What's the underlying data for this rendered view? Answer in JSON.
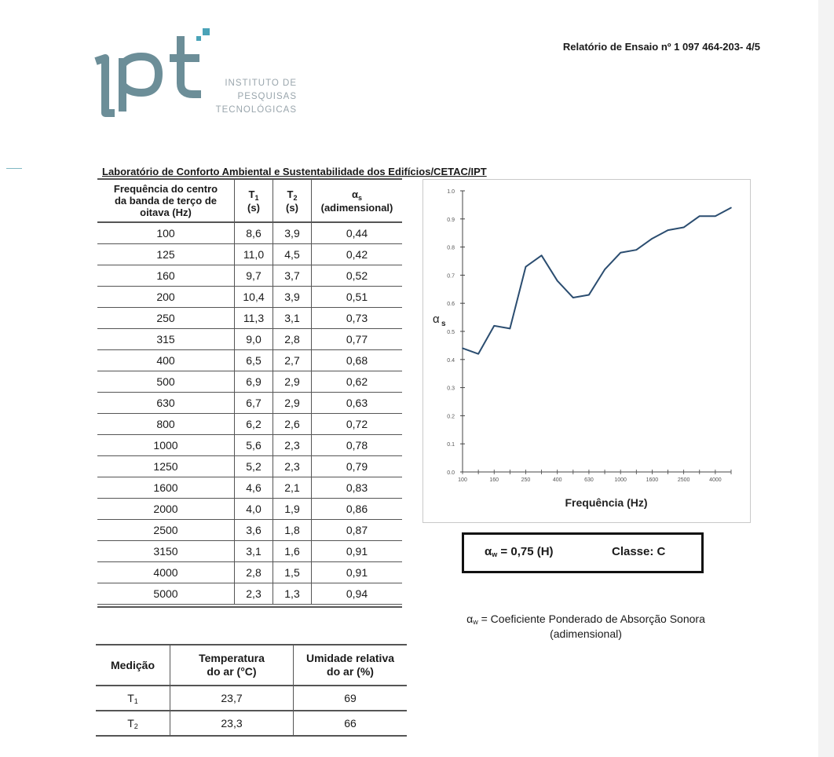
{
  "report_id": "Relatório de Ensaio nº 1 097 464-203- 4/5",
  "logo": {
    "mark_text": "ipt",
    "lines": [
      "INSTITUTO DE",
      "PESQUISAS",
      "TECNOLÓGICAS"
    ],
    "colors": {
      "mark": "#6c8e98",
      "accent": "#4aa3b8",
      "text": "#9aa6ad"
    }
  },
  "lab_title": "Laboratório de Conforto Ambiental e Sustentabilidade dos Edifícios/CETAC/IPT",
  "main_table": {
    "headers": {
      "freq": [
        "Frequência do centro",
        "da banda de terço de",
        "oitava (Hz)"
      ],
      "t1_sym": "T",
      "t1_sub": "1",
      "t1_unit": "(s)",
      "t2_sym": "T",
      "t2_sub": "2",
      "t2_unit": "(s)",
      "alpha_sym": "α",
      "alpha_sub": "s",
      "alpha_unit": "(adimensional)"
    },
    "rows": [
      {
        "freq": "100",
        "t1": "8,6",
        "t2": "3,9",
        "alpha": "0,44"
      },
      {
        "freq": "125",
        "t1": "11,0",
        "t2": "4,5",
        "alpha": "0,42"
      },
      {
        "freq": "160",
        "t1": "9,7",
        "t2": "3,7",
        "alpha": "0,52"
      },
      {
        "freq": "200",
        "t1": "10,4",
        "t2": "3,9",
        "alpha": "0,51"
      },
      {
        "freq": "250",
        "t1": "11,3",
        "t2": "3,1",
        "alpha": "0,73"
      },
      {
        "freq": "315",
        "t1": "9,0",
        "t2": "2,8",
        "alpha": "0,77"
      },
      {
        "freq": "400",
        "t1": "6,5",
        "t2": "2,7",
        "alpha": "0,68"
      },
      {
        "freq": "500",
        "t1": "6,9",
        "t2": "2,9",
        "alpha": "0,62"
      },
      {
        "freq": "630",
        "t1": "6,7",
        "t2": "2,9",
        "alpha": "0,63"
      },
      {
        "freq": "800",
        "t1": "6,2",
        "t2": "2,6",
        "alpha": "0,72"
      },
      {
        "freq": "1000",
        "t1": "5,6",
        "t2": "2,3",
        "alpha": "0,78"
      },
      {
        "freq": "1250",
        "t1": "5,2",
        "t2": "2,3",
        "alpha": "0,79"
      },
      {
        "freq": "1600",
        "t1": "4,6",
        "t2": "2,1",
        "alpha": "0,83"
      },
      {
        "freq": "2000",
        "t1": "4,0",
        "t2": "1,9",
        "alpha": "0,86"
      },
      {
        "freq": "2500",
        "t1": "3,6",
        "t2": "1,8",
        "alpha": "0,87"
      },
      {
        "freq": "3150",
        "t1": "3,1",
        "t2": "1,6",
        "alpha": "0,91"
      },
      {
        "freq": "4000",
        "t1": "2,8",
        "t2": "1,5",
        "alpha": "0,91"
      },
      {
        "freq": "5000",
        "t1": "2,3",
        "t2": "1,3",
        "alpha": "0,94"
      }
    ]
  },
  "chart_data": {
    "type": "line",
    "xlabel": "Frequência (Hz)",
    "ylabel_sym": "α",
    "ylabel_sub": "s",
    "x": [
      "100",
      "125",
      "160",
      "200",
      "250",
      "315",
      "400",
      "500",
      "630",
      "800",
      "1000",
      "1250",
      "1600",
      "2000",
      "2500",
      "3150",
      "4000",
      "5000"
    ],
    "x_tick_labels": [
      "100",
      "160",
      "250",
      "400",
      "630",
      "1000",
      "1600",
      "2500",
      "4000"
    ],
    "y_tick_labels": [
      "0.0",
      "0.1",
      "0.2",
      "0.3",
      "0.4",
      "0.5",
      "0.6",
      "0.7",
      "0.8",
      "0.9",
      "1.0"
    ],
    "ylim": [
      0,
      1.0
    ],
    "series": [
      {
        "values": [
          0.44,
          0.42,
          0.52,
          0.51,
          0.73,
          0.77,
          0.68,
          0.62,
          0.63,
          0.72,
          0.78,
          0.79,
          0.83,
          0.86,
          0.87,
          0.91,
          0.91,
          0.94
        ],
        "color": "#2b4d70"
      }
    ],
    "grid": false
  },
  "alpha_box": {
    "sym": "α",
    "sub": "w",
    "value_text": "= 0,75 (H)",
    "class_text": "Classe: C"
  },
  "legend_note": {
    "sym": "α",
    "sub": "w",
    "line1": "= Coeficiente Ponderado de Absorção Sonora",
    "line2": "(adimensional)"
  },
  "sub_table": {
    "headers": {
      "col1": "Medição",
      "col2": [
        "Temperatura",
        "do ar (°C)"
      ],
      "col3": [
        "Umidade relativa",
        "do ar (%)"
      ]
    },
    "rows": [
      {
        "sym": "T",
        "sub": "1",
        "temp": "23,7",
        "hum": "69"
      },
      {
        "sym": "T",
        "sub": "2",
        "temp": "23,3",
        "hum": "66"
      }
    ]
  }
}
